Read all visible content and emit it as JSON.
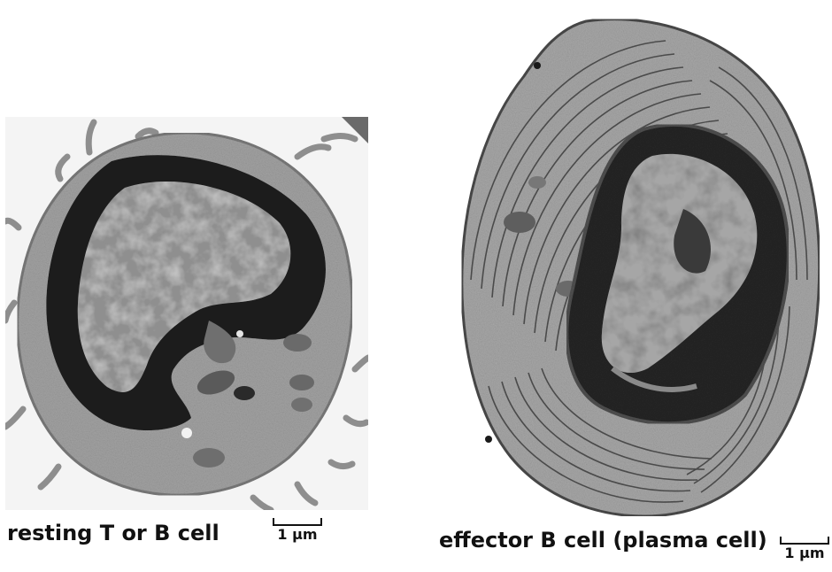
{
  "panels": [
    {
      "caption": "resting T or B cell",
      "scale_label": "1 μm"
    },
    {
      "caption": "effector B cell (plasma cell)",
      "scale_label": "1 μm"
    }
  ],
  "colors": {
    "background": "#ffffff",
    "left_image_bg": "#f4f4f4",
    "cytoplasm": "#9a9a9a",
    "nucleus_dark": "#1e1e1e",
    "euchromatin": "#8c8c8c",
    "er_stripes": "#3a3a3a"
  }
}
